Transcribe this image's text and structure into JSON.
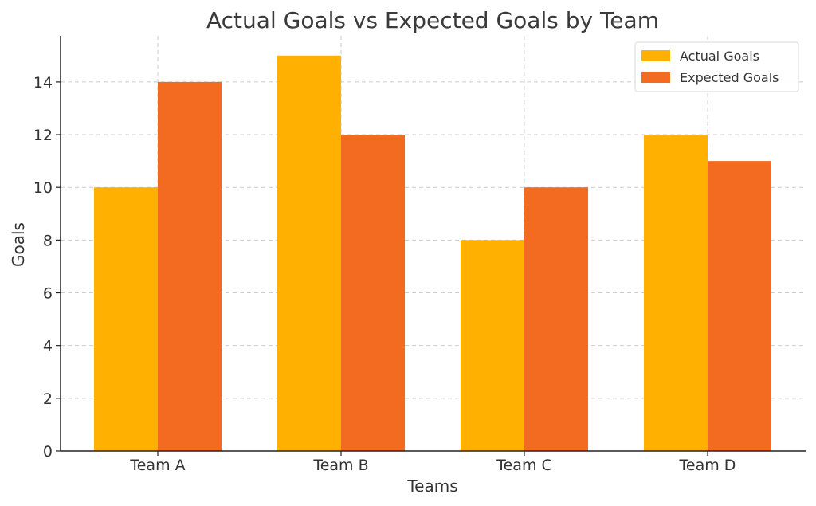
{
  "chart_data": {
    "type": "bar",
    "title": "Actual Goals vs Expected Goals by Team",
    "xlabel": "Teams",
    "ylabel": "Goals",
    "categories": [
      "Team A",
      "Team B",
      "Team C",
      "Team D"
    ],
    "series": [
      {
        "name": "Actual Goals",
        "values": [
          10,
          15,
          8,
          12
        ],
        "color": "#FFB000"
      },
      {
        "name": "Expected Goals",
        "values": [
          14,
          12,
          10,
          11
        ],
        "color": "#F26B21"
      }
    ],
    "ylim": [
      0,
      15.75
    ],
    "yticks": [
      0,
      2,
      4,
      6,
      8,
      10,
      12,
      14
    ],
    "grid": true,
    "legend_position": "top-right"
  }
}
